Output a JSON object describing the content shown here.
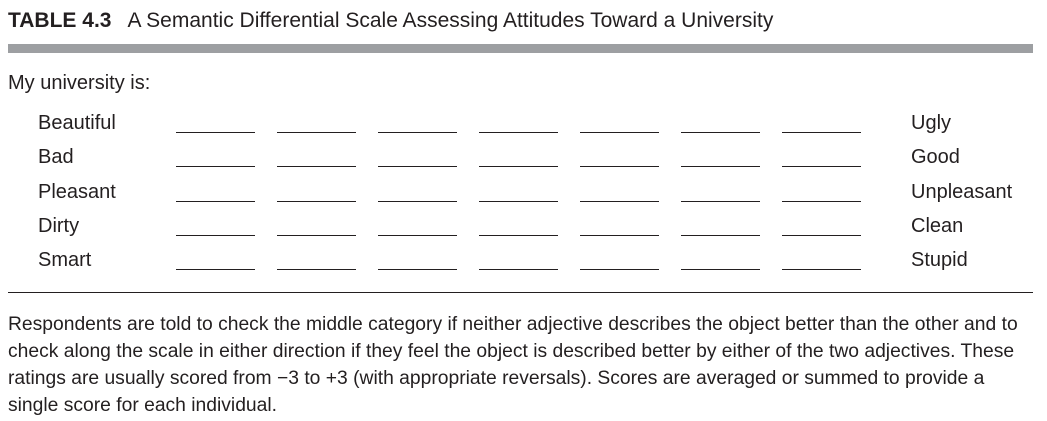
{
  "table": {
    "number": "TABLE 4.3",
    "title": "A Semantic Differential Scale Assessing Attitudes Toward a University"
  },
  "intro": "My university is:",
  "scale_points": 7,
  "rows": [
    {
      "left": "Beautiful",
      "right": "Ugly"
    },
    {
      "left": "Bad",
      "right": "Good"
    },
    {
      "left": "Pleasant",
      "right": "Unpleasant"
    },
    {
      "left": "Dirty",
      "right": "Clean"
    },
    {
      "left": "Smart",
      "right": "Stupid"
    }
  ],
  "note": "Respondents are told to check the middle category if neither adjective describes the object better than the other and to check along the scale in either direction if they feel the object is described better by either of the two adjectives. These ratings are usually scored from −3 to +3 (with appropriate reversals). Scores are averaged or summed to provide a single score for each individual."
}
